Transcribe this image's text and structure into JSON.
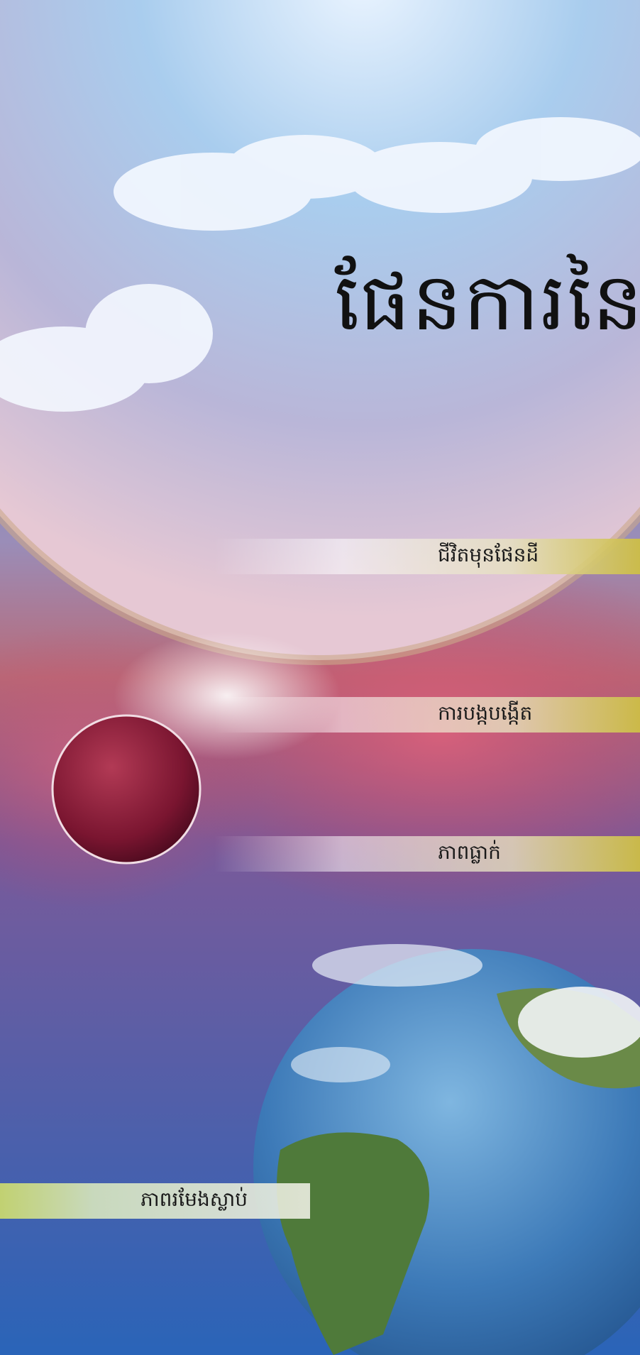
{
  "cover": {
    "title": "ផែនការនៃ",
    "sections": [
      "ជីវិតមុនផែនដី",
      "ការបង្កបង្កើត",
      "ភាពធ្លាក់",
      "ភាពរមែងស្លាប់"
    ]
  },
  "colors": {
    "sky": "#8fc2ea",
    "nebula_red": "#b4344a",
    "band_yellow": "#d2be3c",
    "band_green": "#c8d66e",
    "title": "#111111"
  }
}
